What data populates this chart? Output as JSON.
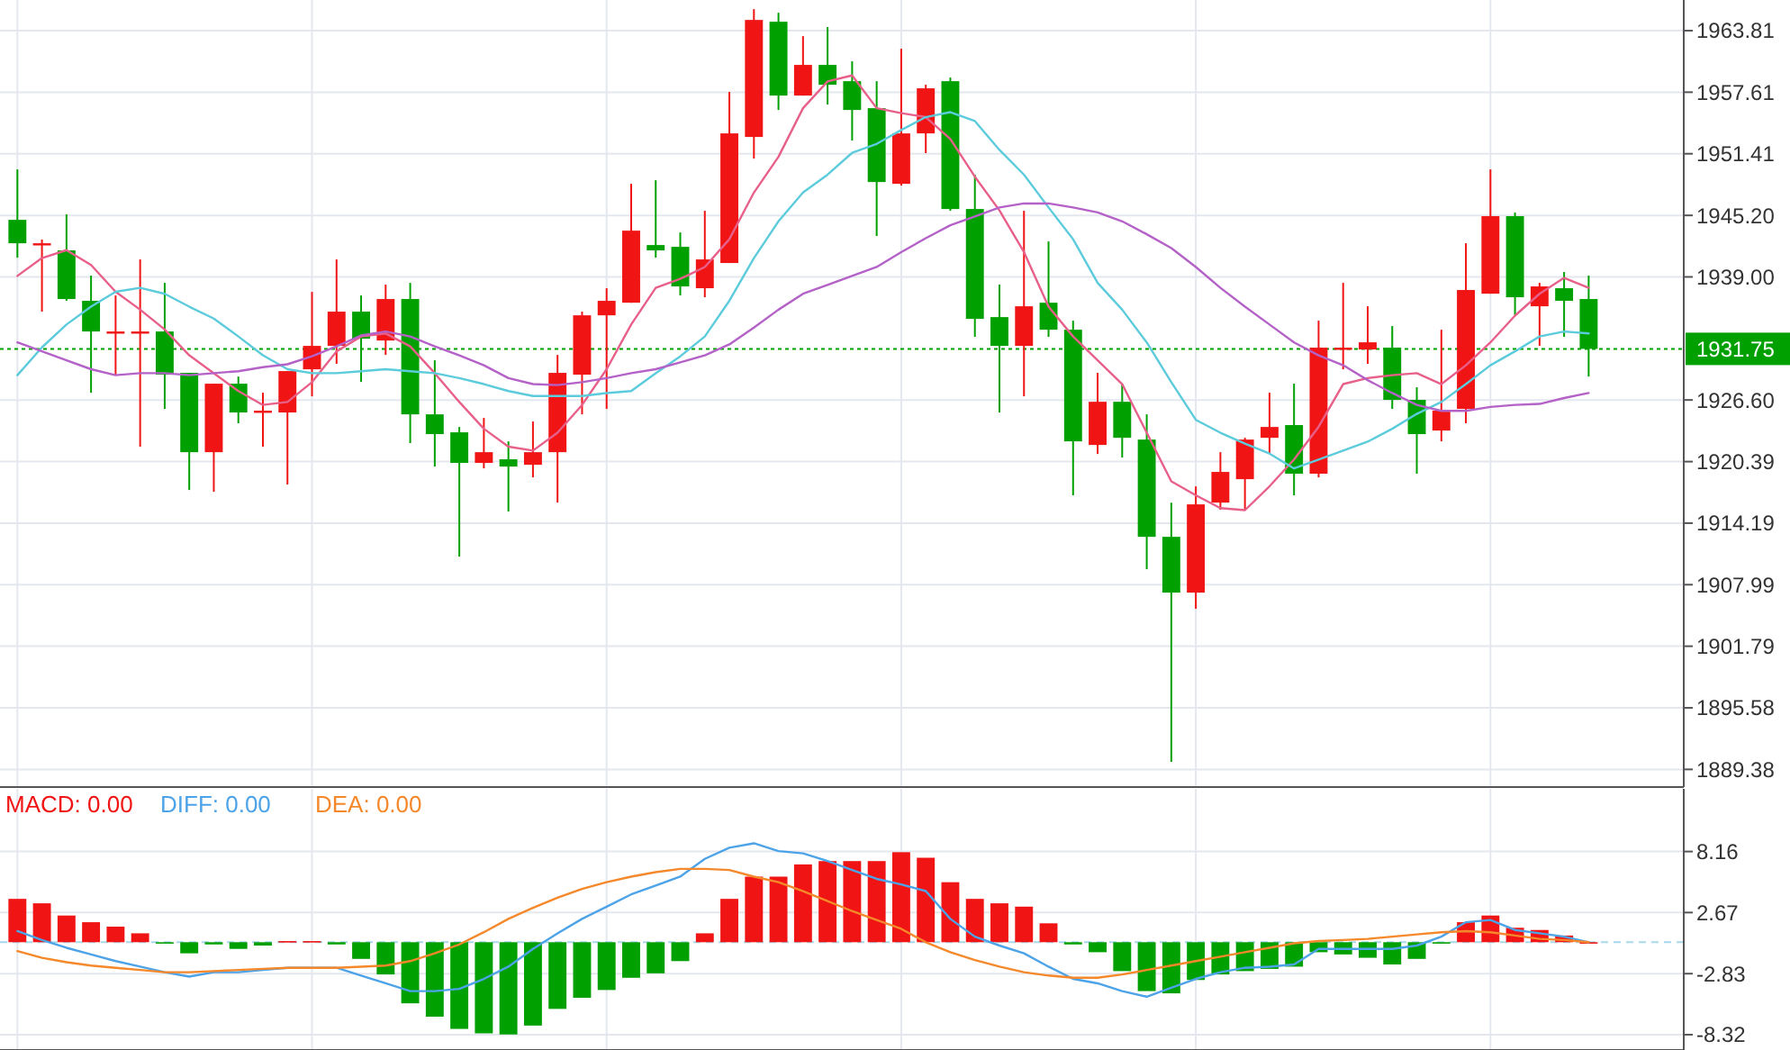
{
  "chart_data": [
    {
      "type": "candlestick",
      "categories": [
        null,
        null,
        null,
        null,
        null,
        null,
        null,
        null,
        null,
        null,
        null,
        null,
        null,
        null,
        null,
        null,
        null,
        null,
        null,
        null,
        null,
        null,
        null,
        null,
        null,
        null,
        null,
        null,
        null,
        null,
        null,
        null,
        null,
        null,
        null,
        null,
        null,
        null,
        null,
        null,
        null,
        null,
        null,
        null,
        null,
        null,
        null,
        null,
        null,
        null,
        null,
        null,
        null,
        null,
        null,
        null,
        null,
        null,
        null,
        null,
        null,
        null,
        null,
        null,
        null
      ],
      "ohlc": [
        [
          1944.75,
          1949.83,
          1940.94,
          1942.39
        ],
        [
          1942.21,
          1942.76,
          1935.5,
          1942.39
        ],
        [
          1941.67,
          1945.3,
          1936.59,
          1936.77
        ],
        [
          1936.59,
          1939.13,
          1927.33,
          1933.5
        ],
        [
          1933.32,
          1937.13,
          1929.15,
          1933.5
        ],
        [
          1933.32,
          1940.76,
          1921.89,
          1933.5
        ],
        [
          1933.5,
          1938.4,
          1925.7,
          1929.15
        ],
        [
          1929.33,
          1929.33,
          1917.53,
          1921.34
        ],
        [
          1921.34,
          1928.24,
          1917.35,
          1928.24
        ],
        [
          1928.24,
          1928.96,
          1924.25,
          1925.34
        ],
        [
          1925.34,
          1927.33,
          1921.89,
          1925.52
        ],
        [
          1925.34,
          1929.51,
          1918.08,
          1929.51
        ],
        [
          1929.69,
          1937.49,
          1926.97,
          1932.05
        ],
        [
          1932.05,
          1940.76,
          1930.24,
          1935.5
        ],
        [
          1935.5,
          1937.13,
          1928.42,
          1932.77
        ],
        [
          1932.59,
          1938.22,
          1931.14,
          1936.77
        ],
        [
          1936.77,
          1938.4,
          1922.25,
          1925.15
        ],
        [
          1925.15,
          1930.6,
          1919.89,
          1923.16
        ],
        [
          1923.34,
          1923.88,
          1910.82,
          1920.26
        ],
        [
          1920.26,
          1924.79,
          1919.71,
          1921.34
        ],
        [
          1920.62,
          1922.43,
          1915.36,
          1919.89
        ],
        [
          1920.07,
          1924.43,
          1918.8,
          1921.34
        ],
        [
          1921.34,
          1931.14,
          1916.26,
          1929.33
        ],
        [
          1929.15,
          1935.5,
          1925.15,
          1935.13
        ],
        [
          1935.13,
          1937.86,
          1925.7,
          1936.59
        ],
        [
          1936.4,
          1948.38,
          1936.4,
          1943.66
        ],
        [
          1942.21,
          1948.74,
          1940.94,
          1941.67
        ],
        [
          1942.03,
          1943.48,
          1937.13,
          1938.04
        ],
        [
          1937.86,
          1945.66,
          1936.95,
          1940.76
        ],
        [
          1940.4,
          1957.64,
          1940.4,
          1953.46
        ],
        [
          1953.1,
          1965.98,
          1950.92,
          1964.89
        ],
        [
          1964.71,
          1965.62,
          1955.82,
          1957.27
        ],
        [
          1957.27,
          1963.26,
          1957.27,
          1960.36
        ],
        [
          1960.36,
          1964.17,
          1956.37,
          1958.36
        ],
        [
          1958.72,
          1960.72,
          1952.74,
          1955.82
        ],
        [
          1956.0,
          1958.72,
          1943.12,
          1948.56
        ],
        [
          1948.38,
          1961.99,
          1948.2,
          1953.46
        ],
        [
          1953.46,
          1958.36,
          1951.47,
          1958.0
        ],
        [
          1958.72,
          1959.09,
          1945.66,
          1945.84
        ],
        [
          1945.84,
          1949.29,
          1932.96,
          1934.77
        ],
        [
          1934.95,
          1938.22,
          1925.34,
          1932.05
        ],
        [
          1932.05,
          1945.66,
          1926.97,
          1936.04
        ],
        [
          1936.4,
          1942.57,
          1932.96,
          1933.68
        ],
        [
          1933.68,
          1934.59,
          1916.99,
          1922.43
        ],
        [
          1922.07,
          1929.33,
          1921.16,
          1926.42
        ],
        [
          1926.42,
          1928.24,
          1920.8,
          1922.79
        ],
        [
          1922.61,
          1925.15,
          1909.55,
          1912.81
        ],
        [
          1912.81,
          1916.26,
          1890.13,
          1907.19
        ],
        [
          1907.19,
          1917.89,
          1905.56,
          1916.08
        ],
        [
          1916.26,
          1921.34,
          1915.54,
          1919.35
        ],
        [
          1918.62,
          1922.79,
          1915.54,
          1922.61
        ],
        [
          1922.79,
          1927.33,
          1921.16,
          1923.88
        ],
        [
          1924.07,
          1928.24,
          1916.99,
          1919.17
        ],
        [
          1919.17,
          1934.59,
          1918.8,
          1931.87
        ],
        [
          1931.69,
          1938.4,
          1929.69,
          1931.87
        ],
        [
          1931.69,
          1936.04,
          1930.24,
          1932.41
        ],
        [
          1931.87,
          1934.05,
          1925.7,
          1926.61
        ],
        [
          1926.61,
          1927.88,
          1919.17,
          1923.16
        ],
        [
          1923.52,
          1933.68,
          1922.43,
          1925.52
        ],
        [
          1925.7,
          1942.39,
          1924.25,
          1937.68
        ],
        [
          1937.31,
          1949.83,
          1937.31,
          1945.12
        ],
        [
          1945.12,
          1945.48,
          1935.13,
          1936.95
        ],
        [
          1936.04,
          1938.4,
          1932.05,
          1938.04
        ],
        [
          1937.86,
          1939.49,
          1932.96,
          1936.59
        ],
        [
          1936.77,
          1939.13,
          1928.96,
          1931.75
        ]
      ],
      "colors": [
        "#00a000",
        "#f01414",
        "#00a000",
        "#00a000",
        "#f01414",
        "#f01414",
        "#00a000",
        "#00a000",
        "#f01414",
        "#00a000",
        "#f01414",
        "#f01414",
        "#f01414",
        "#f01414",
        "#00a000",
        "#f01414",
        "#00a000",
        "#00a000",
        "#00a000",
        "#f01414",
        "#00a000",
        "#f01414",
        "#f01414",
        "#f01414",
        "#f01414",
        "#f01414",
        "#00a000",
        "#00a000",
        "#f01414",
        "#f01414",
        "#f01414",
        "#00a000",
        "#f01414",
        "#00a000",
        "#00a000",
        "#00a000",
        "#f01414",
        "#f01414",
        "#00a000",
        "#00a000",
        "#00a000",
        "#f01414",
        "#00a000",
        "#00a000",
        "#f01414",
        "#00a000",
        "#00a000",
        "#00a000",
        "#f01414",
        "#f01414",
        "#f01414",
        "#f01414",
        "#00a000",
        "#f01414",
        "#f01414",
        "#f01414",
        "#00a000",
        "#00a000",
        "#f01414",
        "#f01414",
        "#f01414",
        "#00a000",
        "#f01414",
        "#00a000",
        "#00a000"
      ],
      "series": [
        {
          "type": "line",
          "color": "#e8608a",
          "values": [
            1939.1,
            1940.9,
            1941.7,
            1940.2,
            1937.5,
            1935.7,
            1933.7,
            1931.1,
            1929.3,
            1927.5,
            1926.1,
            1926.4,
            1928.4,
            1931.5,
            1933.0,
            1933.3,
            1932.0,
            1929.3,
            1926.4,
            1923.7,
            1921.9,
            1921.5,
            1923.3,
            1926.1,
            1929.7,
            1934.2,
            1937.9,
            1938.8,
            1940.0,
            1942.8,
            1947.5,
            1951.1,
            1956.0,
            1958.7,
            1959.3,
            1956.0,
            1955.5,
            1955.1,
            1952.9,
            1949.1,
            1945.7,
            1941.5,
            1936.0,
            1933.0,
            1930.6,
            1928.2,
            1923.3,
            1918.4,
            1917.0,
            1915.7,
            1915.5,
            1917.9,
            1920.6,
            1923.9,
            1928.2,
            1928.8,
            1929.1,
            1929.3,
            1928.2,
            1930.1,
            1932.4,
            1935.1,
            1937.3,
            1938.9,
            1937.9
          ]
        },
        {
          "type": "line",
          "color": "#5ccbdc",
          "values": [
            1929.1,
            1931.9,
            1934.2,
            1936.0,
            1937.5,
            1937.9,
            1937.3,
            1936.0,
            1934.8,
            1933.0,
            1931.1,
            1929.7,
            1929.3,
            1929.3,
            1929.5,
            1929.7,
            1929.5,
            1929.3,
            1928.8,
            1928.2,
            1927.5,
            1927.0,
            1927.0,
            1927.0,
            1927.3,
            1927.5,
            1929.3,
            1931.0,
            1933.0,
            1936.6,
            1940.9,
            1944.6,
            1947.5,
            1949.3,
            1951.5,
            1952.4,
            1953.8,
            1955.1,
            1955.6,
            1954.7,
            1951.8,
            1949.3,
            1946.0,
            1942.8,
            1938.4,
            1935.7,
            1932.4,
            1928.4,
            1924.6,
            1923.3,
            1922.2,
            1921.2,
            1919.7,
            1920.6,
            1921.5,
            1922.4,
            1923.7,
            1925.2,
            1926.4,
            1928.2,
            1930.1,
            1931.5,
            1933.0,
            1933.5,
            1933.3
          ]
        },
        {
          "type": "line",
          "color": "#b462c8",
          "values": [
            1932.4,
            1931.5,
            1930.6,
            1929.7,
            1929.1,
            1929.3,
            1929.3,
            1929.1,
            1929.3,
            1929.5,
            1929.9,
            1930.2,
            1931.0,
            1932.0,
            1933.1,
            1933.5,
            1933.0,
            1932.0,
            1931.1,
            1930.1,
            1928.8,
            1928.2,
            1928.1,
            1928.4,
            1928.8,
            1929.3,
            1929.7,
            1930.4,
            1931.1,
            1932.2,
            1933.9,
            1935.7,
            1937.3,
            1938.2,
            1939.1,
            1940.0,
            1941.5,
            1942.9,
            1944.2,
            1945.1,
            1946.0,
            1946.4,
            1946.4,
            1946.0,
            1945.5,
            1944.6,
            1943.3,
            1941.9,
            1940.0,
            1937.9,
            1936.0,
            1934.2,
            1932.4,
            1931.1,
            1930.1,
            1928.6,
            1927.3,
            1926.1,
            1925.5,
            1925.5,
            1925.9,
            1926.1,
            1926.2,
            1926.8,
            1927.3
          ]
        }
      ],
      "ylim": [
        1887.6,
        1966.9
      ],
      "yticks": [
        1963.81,
        1957.61,
        1951.41,
        {
          "value": 1945.2,
          "label": "1945.20"
        },
        {
          "value": 1939,
          "label": "1939.00"
        },
        {
          "value": 1926.6,
          "label": "1926.60"
        },
        1920.39,
        1914.19,
        1907.99,
        1901.79,
        1895.58,
        1889.38
      ],
      "ref_lines": [
        {
          "axis": "y",
          "value": 1931.75,
          "label": "1931.75",
          "color": "#00a000",
          "line_style": "dotted"
        }
      ],
      "grid": true,
      "tick_labels": "y"
    },
    {
      "type": "bar",
      "categories": [
        null,
        null,
        null,
        null,
        null,
        null,
        null,
        null,
        null,
        null,
        null,
        null,
        null,
        null,
        null,
        null,
        null,
        null,
        null,
        null,
        null,
        null,
        null,
        null,
        null,
        null,
        null,
        null,
        null,
        null,
        null,
        null,
        null,
        null,
        null,
        null,
        null,
        null,
        null,
        null,
        null,
        null,
        null,
        null,
        null,
        null,
        null,
        null,
        null,
        null,
        null,
        null,
        null,
        null,
        null,
        null,
        null,
        null,
        null,
        null,
        null,
        null,
        null,
        null,
        null
      ],
      "series": [
        {
          "name": "MACD: 0.00",
          "type": "bar",
          "color": "#f01414",
          "values": [
            3.9,
            3.5,
            2.4,
            1.8,
            1.4,
            0.8,
            -0.1,
            -1.0,
            -0.2,
            -0.6,
            -0.3,
            0.1,
            0.1,
            -0.2,
            -1.5,
            -2.9,
            -5.5,
            -6.7,
            -7.8,
            -8.2,
            -8.3,
            -7.5,
            -6.0,
            -5.0,
            -4.3,
            -3.2,
            -2.8,
            -1.7,
            0.8,
            3.9,
            5.9,
            5.9,
            7.0,
            7.3,
            7.3,
            7.3,
            8.1,
            7.6,
            5.4,
            3.9,
            3.5,
            3.2,
            1.7,
            -0.2,
            -0.9,
            -2.6,
            -4.4,
            -4.6,
            -3.4,
            -2.9,
            -2.6,
            -2.4,
            -2.2,
            -0.9,
            -1.1,
            -1.4,
            -2.0,
            -1.5,
            0,
            1.8,
            2.4,
            1.3,
            1.1,
            0.6,
            0
          ],
          "colors": [
            "#f01414",
            "#f01414",
            "#f01414",
            "#f01414",
            "#f01414",
            "#f01414",
            "#00a000",
            "#00a000",
            "#00a000",
            "#00a000",
            "#00a000",
            "#f01414",
            "#f01414",
            "#00a000",
            "#00a000",
            "#00a000",
            "#00a000",
            "#00a000",
            "#00a000",
            "#00a000",
            "#00a000",
            "#00a000",
            "#00a000",
            "#00a000",
            "#00a000",
            "#00a000",
            "#00a000",
            "#00a000",
            "#f01414",
            "#f01414",
            "#f01414",
            "#f01414",
            "#f01414",
            "#f01414",
            "#f01414",
            "#f01414",
            "#f01414",
            "#f01414",
            "#f01414",
            "#f01414",
            "#f01414",
            "#f01414",
            "#f01414",
            "#00a000",
            "#00a000",
            "#00a000",
            "#00a000",
            "#00a000",
            "#00a000",
            "#00a000",
            "#00a000",
            "#00a000",
            "#00a000",
            "#00a000",
            "#00a000",
            "#00a000",
            "#00a000",
            "#00a000",
            "#00a000",
            "#f01414",
            "#f01414",
            "#f01414",
            "#f01414",
            "#f01414",
            "#f01414"
          ]
        },
        {
          "name": "DIFF: 0.00",
          "type": "line",
          "color": "#4da3e8",
          "values": [
            1.0,
            0.2,
            -0.5,
            -1.1,
            -1.7,
            -2.2,
            -2.7,
            -3.1,
            -2.7,
            -2.7,
            -2.5,
            -2.3,
            -2.3,
            -2.3,
            -3.0,
            -3.7,
            -4.4,
            -4.4,
            -4.2,
            -3.3,
            -2.2,
            -0.6,
            0.8,
            2.1,
            3.2,
            4.3,
            5.1,
            5.9,
            7.5,
            8.5,
            8.9,
            8.2,
            8.0,
            7.3,
            6.5,
            5.7,
            5.2,
            4.6,
            2.1,
            0.5,
            -0.3,
            -1.0,
            -2.2,
            -3.3,
            -3.7,
            -4.4,
            -4.9,
            -4.1,
            -3.3,
            -2.7,
            -2.3,
            -2.2,
            -2.0,
            -0.6,
            -0.6,
            -0.6,
            -0.6,
            -0.3,
            0.5,
            1.8,
            2.0,
            1.1,
            0.8,
            0.5,
            0.0
          ]
        },
        {
          "name": "DEA: 0.00",
          "type": "line",
          "color": "#f5882a",
          "values": [
            -0.8,
            -1.4,
            -1.8,
            -2.1,
            -2.3,
            -2.5,
            -2.7,
            -2.7,
            -2.6,
            -2.5,
            -2.4,
            -2.3,
            -2.3,
            -2.3,
            -2.2,
            -2.1,
            -1.7,
            -1.0,
            -0.2,
            0.9,
            2.1,
            3.1,
            4.0,
            4.8,
            5.4,
            5.9,
            6.3,
            6.6,
            6.6,
            6.5,
            5.9,
            5.4,
            4.6,
            3.7,
            2.8,
            2.0,
            1.2,
            0.0,
            -0.9,
            -1.6,
            -2.2,
            -2.7,
            -3.0,
            -3.2,
            -3.2,
            -2.9,
            -2.5,
            -2.1,
            -1.7,
            -1.3,
            -0.9,
            -0.5,
            -0.1,
            0.1,
            0.2,
            0.3,
            0.5,
            0.7,
            0.9,
            1.0,
            0.9,
            0.6,
            0.3,
            0.2,
            0.0
          ]
        }
      ],
      "ylim": [
        -9.7,
        13.8
      ],
      "yticks": [
        8.16,
        2.67,
        -2.83,
        -8.32
      ],
      "ref_lines": [
        {
          "axis": "y",
          "value": 0,
          "color": "#a8d8ea",
          "line_style": "dashed"
        }
      ],
      "grid": true,
      "legend": "top left",
      "tick_labels": "y"
    }
  ]
}
